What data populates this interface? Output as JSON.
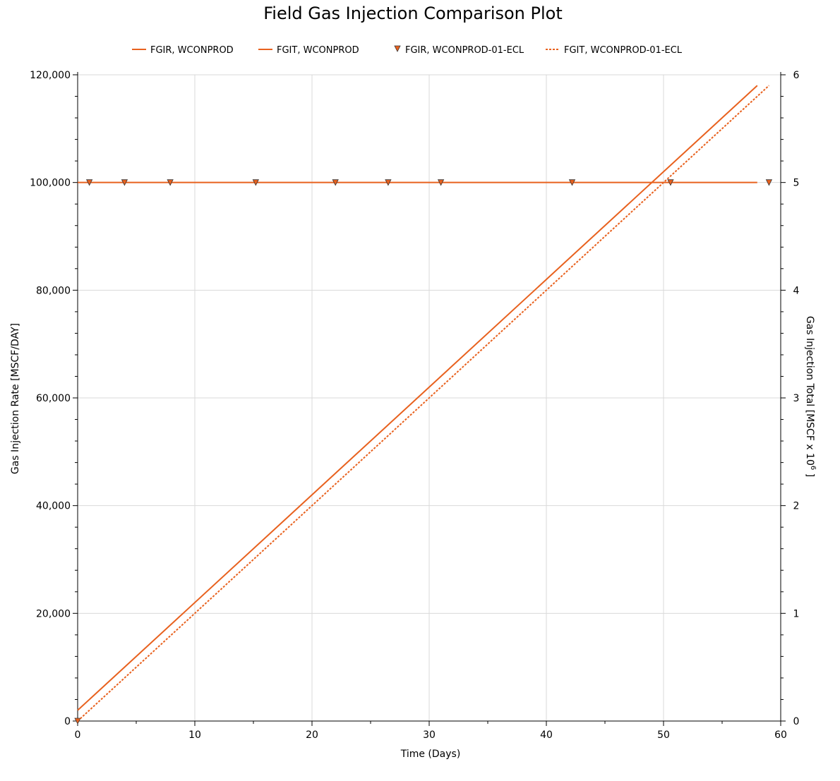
{
  "chart_data": {
    "type": "line",
    "title": "Field Gas Injection Comparison Plot",
    "xlabel": "Time (Days)",
    "ylabel_left": "Gas Injection Rate [MSCF/DAY]",
    "ylabel_right_main": "Gas Injection Total [MSCF x 10",
    "ylabel_right_exp": "6",
    "ylabel_right_end": " ]",
    "xlim": [
      0,
      60
    ],
    "ylim_left": [
      0,
      120000
    ],
    "ylim_right": [
      0,
      6
    ],
    "x_ticks": [
      0,
      10,
      20,
      30,
      40,
      50,
      60
    ],
    "x_tick_labels": [
      "0",
      "10",
      "20",
      "30",
      "40",
      "50",
      "60"
    ],
    "y_left_ticks": [
      0,
      20000,
      40000,
      60000,
      80000,
      100000,
      120000
    ],
    "y_left_tick_labels": [
      "0",
      "20,000",
      "40,000",
      "60,000",
      "80,000",
      "100,000",
      "120,000"
    ],
    "y_right_ticks": [
      0,
      1,
      2,
      3,
      4,
      5,
      6
    ],
    "y_right_tick_labels": [
      "0",
      "1",
      "2",
      "3",
      "4",
      "5",
      "6"
    ],
    "grid": true,
    "legend_position": "top",
    "series": [
      {
        "name": "FGIR, WCONPROD",
        "axis": "left",
        "style": "solid",
        "marker": "none",
        "color": "#e8611e",
        "x": [
          0,
          58
        ],
        "y": [
          100000,
          100000
        ]
      },
      {
        "name": "FGIT, WCONPROD",
        "axis": "right",
        "style": "solid",
        "marker": "none",
        "color": "#e8611e",
        "x": [
          0,
          58
        ],
        "y": [
          0.1,
          5.9
        ]
      },
      {
        "name": "FGIR, WCONPROD-01-ECL",
        "axis": "left",
        "style": "none",
        "marker": "triangle-down",
        "color": "#e8611e",
        "x": [
          0,
          1,
          4,
          7.9,
          15.2,
          22,
          26.5,
          31,
          42.2,
          50.6,
          59
        ],
        "y": [
          0,
          100000,
          100000,
          100000,
          100000,
          100000,
          100000,
          100000,
          100000,
          100000,
          100000
        ]
      },
      {
        "name": "FGIT, WCONPROD-01-ECL",
        "axis": "right",
        "style": "dotted",
        "marker": "none",
        "color": "#e8611e",
        "x": [
          0,
          59
        ],
        "y": [
          0,
          5.9
        ]
      }
    ]
  }
}
